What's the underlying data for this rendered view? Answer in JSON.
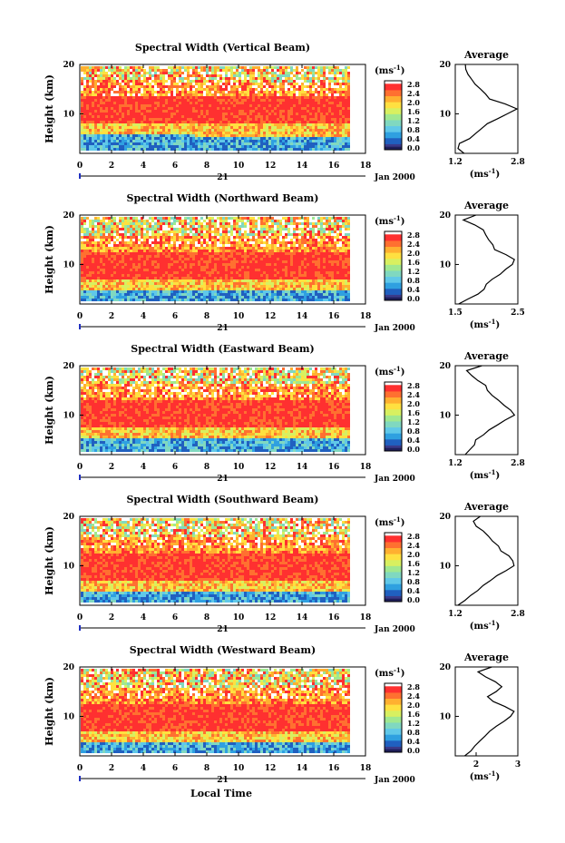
{
  "figure": {
    "xlabel": "Local Time",
    "date_label": "Jan 2000",
    "day_label": "21",
    "avg_title": "Average",
    "unit_label": "(ms",
    "unit_exp": "-1",
    "unit_close": ")"
  },
  "colors": {
    "scale": [
      "#3a3a8a",
      "#2060c0",
      "#2fa0e0",
      "#60c8e8",
      "#80d8c0",
      "#a0e890",
      "#d8f060",
      "#ffe040",
      "#ffb030",
      "#ff7030",
      "#ff3030"
    ],
    "missing": "#ffffff",
    "lowest": "#1e1e5a"
  },
  "chart_data": [
    {
      "type": "heatmap",
      "title": "Spectral Width (Vertical Beam)",
      "ylabel": "Height (km)",
      "x_ticks": [
        "0",
        "2",
        "4",
        "6",
        "8",
        "10",
        "12",
        "14",
        "16",
        "18"
      ],
      "xlim": [
        0,
        18
      ],
      "y_ticks": [
        "20",
        "10"
      ],
      "ylim": [
        2,
        20
      ],
      "data_end_hour": 17,
      "colorbar_ticks": [
        "2.8",
        "2.4",
        "2.0",
        "1.6",
        "1.2",
        "0.8",
        "0.4",
        "0.0"
      ],
      "layer_center_km": 11,
      "layer_fade_per_hour": 0.02,
      "average": {
        "xlabel": "(ms-1)",
        "x_ticks": [
          "1.2",
          "2.8"
        ],
        "xlim": [
          1.2,
          2.8
        ],
        "y_ticks": [
          "20",
          "10"
        ],
        "height_km": [
          2,
          3,
          4,
          5,
          6,
          7,
          8,
          9,
          10,
          11,
          12,
          13,
          14,
          15,
          16,
          17,
          18,
          19,
          20
        ],
        "values": [
          1.4,
          1.25,
          1.3,
          1.6,
          1.7,
          1.85,
          2.0,
          2.3,
          2.55,
          2.75,
          2.5,
          2.05,
          2.0,
          1.85,
          1.7,
          1.65,
          1.55,
          1.5,
          1.45
        ]
      }
    },
    {
      "type": "heatmap",
      "title": "Spectral Width (Northward Beam)",
      "ylabel": "Height (km)",
      "x_ticks": [
        "0",
        "2",
        "4",
        "6",
        "8",
        "10",
        "12",
        "14",
        "16",
        "18"
      ],
      "xlim": [
        0,
        18
      ],
      "y_ticks": [
        "20",
        "10"
      ],
      "ylim": [
        2,
        20
      ],
      "data_end_hour": 17,
      "colorbar_ticks": [
        "2.8",
        "2.4",
        "2.0",
        "1.6",
        "1.2",
        "0.8",
        "0.4",
        "0.0"
      ],
      "layer_center_km": 10,
      "layer_fade_per_hour": 0.0,
      "average": {
        "xlabel": "(ms-1)",
        "x_ticks": [
          "1.5",
          "2.5"
        ],
        "xlim": [
          1.5,
          2.5
        ],
        "y_ticks": [
          "20",
          "10"
        ],
        "height_km": [
          2,
          3,
          4,
          5,
          6,
          7,
          8,
          9,
          10,
          11,
          12,
          13,
          14,
          15,
          16,
          17,
          18,
          19,
          20
        ],
        "values": [
          1.55,
          1.7,
          1.85,
          1.95,
          2.0,
          2.1,
          2.2,
          2.3,
          2.4,
          2.45,
          2.3,
          2.15,
          2.1,
          2.05,
          2.0,
          1.95,
          1.8,
          1.65,
          1.85
        ]
      }
    },
    {
      "type": "heatmap",
      "title": "Spectral Width (Eastward Beam)",
      "ylabel": "Height (km)",
      "x_ticks": [
        "0",
        "2",
        "4",
        "6",
        "8",
        "10",
        "12",
        "14",
        "16",
        "18"
      ],
      "xlim": [
        0,
        18
      ],
      "y_ticks": [
        "20",
        "10"
      ],
      "ylim": [
        2,
        20
      ],
      "data_end_hour": 17,
      "colorbar_ticks": [
        "2.8",
        "2.4",
        "2.0",
        "1.6",
        "1.2",
        "0.8",
        "0.4",
        "0.0"
      ],
      "layer_center_km": 10.5,
      "layer_fade_per_hour": 0.0,
      "average": {
        "xlabel": "(ms-1)",
        "x_ticks": [
          "1.2",
          "2.8"
        ],
        "xlim": [
          1.2,
          2.8
        ],
        "y_ticks": [
          "20",
          "10"
        ],
        "height_km": [
          2,
          3,
          4,
          5,
          6,
          7,
          8,
          9,
          10,
          11,
          12,
          13,
          14,
          15,
          16,
          17,
          18,
          19,
          20
        ],
        "values": [
          1.45,
          1.55,
          1.7,
          1.75,
          1.9,
          2.1,
          2.3,
          2.5,
          2.7,
          2.6,
          2.45,
          2.3,
          2.15,
          2.05,
          1.95,
          1.8,
          1.65,
          1.5,
          1.85
        ]
      }
    },
    {
      "type": "heatmap",
      "title": "Spectral Width (Southward Beam)",
      "ylabel": "Height (km)",
      "x_ticks": [
        "0",
        "2",
        "4",
        "6",
        "8",
        "10",
        "12",
        "14",
        "16",
        "18"
      ],
      "xlim": [
        0,
        18
      ],
      "y_ticks": [
        "20",
        "10"
      ],
      "ylim": [
        2,
        20
      ],
      "data_end_hour": 17,
      "colorbar_ticks": [
        "2.8",
        "2.4",
        "2.0",
        "1.6",
        "1.2",
        "0.8",
        "0.4",
        "0.0"
      ],
      "layer_center_km": 10,
      "layer_fade_per_hour": 0.0,
      "average": {
        "xlabel": "(ms-1)",
        "x_ticks": [
          "1.2",
          "2.8"
        ],
        "xlim": [
          1.2,
          2.8
        ],
        "y_ticks": [
          "20",
          "10"
        ],
        "height_km": [
          2,
          3,
          4,
          5,
          6,
          7,
          8,
          9,
          10,
          11,
          12,
          13,
          14,
          15,
          16,
          17,
          18,
          19,
          20
        ],
        "values": [
          1.3,
          1.45,
          1.6,
          1.75,
          1.9,
          2.1,
          2.3,
          2.5,
          2.7,
          2.65,
          2.55,
          2.4,
          2.3,
          2.15,
          2.05,
          1.9,
          1.75,
          1.65,
          1.85
        ]
      }
    },
    {
      "type": "heatmap",
      "title": "Spectral Width (Westward Beam)",
      "ylabel": "Height (km)",
      "x_ticks": [
        "0",
        "2",
        "4",
        "6",
        "8",
        "10",
        "12",
        "14",
        "16",
        "18"
      ],
      "xlim": [
        0,
        18
      ],
      "y_ticks": [
        "20",
        "10"
      ],
      "ylim": [
        2,
        20
      ],
      "data_end_hour": 17,
      "colorbar_ticks": [
        "2.8",
        "2.4",
        "2.0",
        "1.6",
        "1.2",
        "0.8",
        "0.4",
        "0.0"
      ],
      "layer_center_km": 10,
      "layer_fade_per_hour": 0.0,
      "average": {
        "xlabel": "(ms-1)",
        "x_ticks": [
          "2",
          "3"
        ],
        "xlim": [
          1.5,
          3.0
        ],
        "y_ticks": [
          "20",
          "10"
        ],
        "height_km": [
          2,
          3,
          4,
          5,
          6,
          7,
          8,
          9,
          10,
          11,
          12,
          13,
          14,
          15,
          16,
          17,
          18,
          19,
          20
        ],
        "values": [
          1.7,
          1.85,
          2.0,
          2.1,
          2.2,
          2.35,
          2.5,
          2.7,
          2.85,
          2.9,
          2.7,
          2.4,
          2.3,
          2.5,
          2.6,
          2.45,
          2.2,
          2.05,
          2.35
        ]
      }
    }
  ]
}
